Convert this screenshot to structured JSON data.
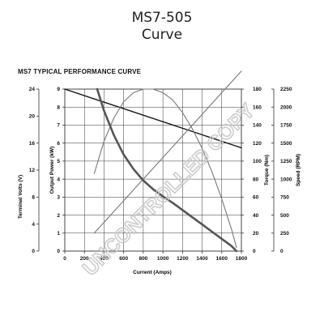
{
  "header": {
    "title_line1": "MS7-505",
    "title_line2": "Curve",
    "chart_heading": "MS7 TYPICAL PERFORMANCE CURVE"
  },
  "watermark": "UNCONTROLLED COPY",
  "colors": {
    "grid": "#333333",
    "gray_curve": "#777777",
    "torque_curve": "#555555",
    "volts_line": "#111111",
    "watermark": "#c8c8c8"
  },
  "chart_data": {
    "type": "line",
    "title": "MS7 TYPICAL PERFORMANCE CURVE",
    "xlabel": "Current (Amps)",
    "xlim": [
      0,
      1800
    ],
    "x_ticks": [
      0,
      200,
      400,
      600,
      800,
      1000,
      1200,
      1400,
      1600,
      1800
    ],
    "grid": true,
    "axes": {
      "terminal_volts": {
        "label": "Terminal Volts (V)",
        "range": [
          0,
          24
        ],
        "ticks": [
          0,
          4,
          8,
          12,
          16,
          20,
          24
        ]
      },
      "output_power": {
        "label": "Output Power (kW)",
        "range": [
          0,
          9
        ],
        "ticks": [
          0,
          1,
          2,
          3,
          4,
          5,
          6,
          7,
          8,
          9
        ]
      },
      "torque": {
        "label": "Torque (Nm)",
        "range": [
          0,
          180
        ],
        "ticks": [
          0,
          20,
          40,
          60,
          80,
          100,
          120,
          140,
          160,
          180
        ]
      },
      "speed": {
        "label": "Speed (RPM)",
        "range": [
          0,
          2250
        ],
        "ticks": [
          0,
          250,
          500,
          750,
          1000,
          1250,
          1500,
          1750,
          2000,
          2250
        ]
      }
    },
    "series": [
      {
        "axis": "terminal_volts",
        "x": [
          0,
          1800
        ],
        "values": [
          24,
          15.3
        ]
      },
      {
        "axis": "output_power",
        "x": [
          300,
          400,
          500,
          600,
          700,
          800,
          900,
          1000,
          1100,
          1200,
          1300,
          1400,
          1500,
          1600,
          1700,
          1750
        ],
        "values": [
          4.3,
          6.1,
          7.4,
          8.3,
          8.8,
          9.0,
          9.0,
          8.8,
          8.4,
          7.7,
          6.8,
          5.7,
          4.4,
          2.9,
          1.2,
          0.2
        ]
      },
      {
        "axis": "torque",
        "x": [
          300,
          1800
        ],
        "values": [
          20,
          200
        ]
      },
      {
        "axis": "speed",
        "x": [
          330,
          400,
          500,
          600,
          700,
          800,
          900,
          1000,
          1100,
          1200,
          1300,
          1400,
          1500,
          1600,
          1700,
          1750
        ],
        "values": [
          2250,
          1950,
          1610,
          1340,
          1140,
          980,
          860,
          760,
          670,
          570,
          470,
          370,
          270,
          170,
          70,
          0
        ]
      }
    ]
  }
}
